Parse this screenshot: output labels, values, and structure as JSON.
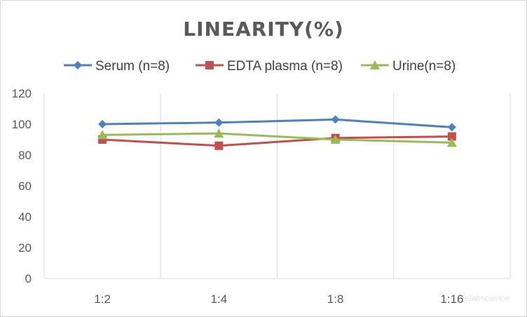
{
  "chart_data": {
    "type": "line",
    "title": "LINEARITY(%)",
    "categories": [
      "1:2",
      "1:4",
      "1:8",
      "1:16"
    ],
    "ylim": [
      0,
      120
    ],
    "yticks": [
      0,
      20,
      40,
      60,
      80,
      100,
      120
    ],
    "grid": "vertical",
    "legend": "top",
    "series": [
      {
        "name": "Serum (n=8)",
        "values": [
          100,
          101,
          103,
          98
        ],
        "color": "#4f81bd",
        "marker": "diamond"
      },
      {
        "name": "EDTA plasma (n=8)",
        "values": [
          90,
          86,
          91,
          92
        ],
        "color": "#c0504d",
        "marker": "square"
      },
      {
        "name": "Urine(n=8)",
        "values": [
          93,
          94,
          90,
          88
        ],
        "color": "#9bbb59",
        "marker": "triangle"
      }
    ],
    "watermark": "elabscience"
  }
}
